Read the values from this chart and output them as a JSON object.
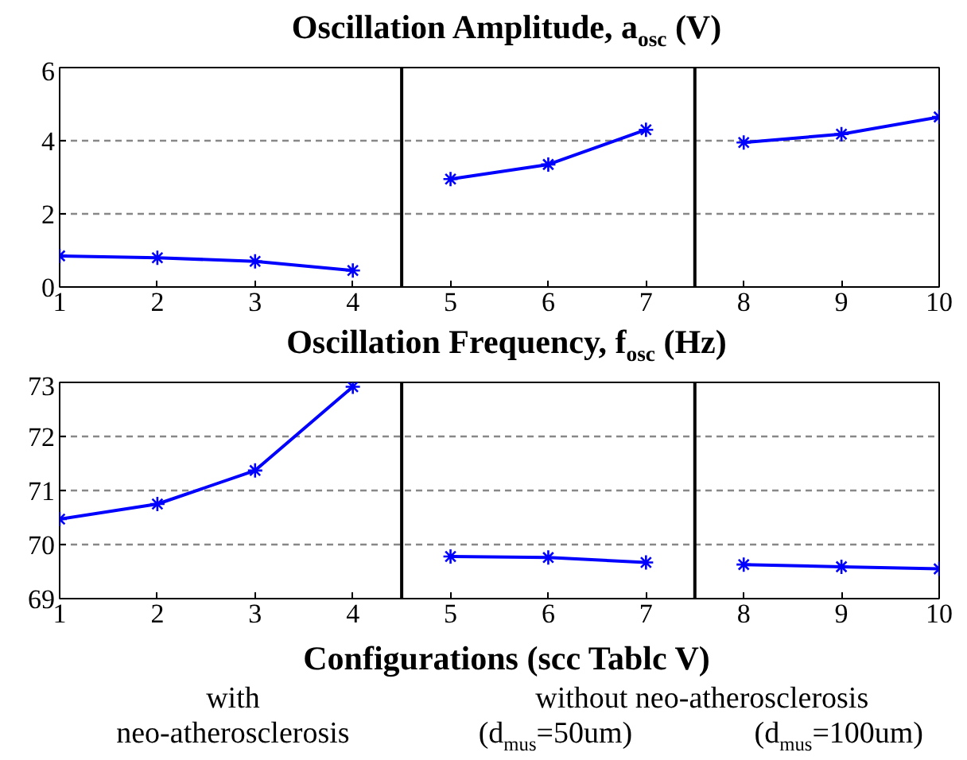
{
  "chart_data": [
    {
      "type": "line",
      "title": "Oscillation Amplitude, a$_{osc}$ (V)",
      "xlim": [
        1,
        10
      ],
      "xticks": [
        1,
        2,
        3,
        4,
        5,
        6,
        7,
        8,
        9,
        10
      ],
      "ylim": [
        0,
        6
      ],
      "yticks": [
        0,
        2,
        4,
        6
      ],
      "grid": "y",
      "marker": "cross",
      "line_style": "solid",
      "series": [
        {
          "color": "#0000ff",
          "x": [
            1,
            2,
            3,
            4
          ],
          "values": [
            0.85,
            0.8,
            0.7,
            0.45
          ]
        },
        {
          "color": "#0000ff",
          "x": [
            5,
            6,
            7
          ],
          "values": [
            2.95,
            3.35,
            4.3
          ]
        },
        {
          "color": "#0000ff",
          "x": [
            8,
            9,
            10
          ],
          "values": [
            3.95,
            4.18,
            4.65
          ]
        }
      ],
      "ref_lines": [
        {
          "axis": "x",
          "value": 4.5,
          "color": "#000000"
        },
        {
          "axis": "x",
          "value": 7.5,
          "color": "#000000"
        }
      ]
    },
    {
      "type": "line",
      "title": "Oscillation Frequency, f$_{osc}$ (Hz)",
      "xlabel": "Configurations (scc Tablc V)",
      "xlim": [
        1,
        10
      ],
      "xticks": [
        1,
        2,
        3,
        4,
        5,
        6,
        7,
        8,
        9,
        10
      ],
      "ylim": [
        69,
        73
      ],
      "yticks": [
        69,
        70,
        71,
        72,
        73
      ],
      "grid": "y",
      "marker": "cross",
      "line_style": "solid",
      "series": [
        {
          "color": "#0000ff",
          "x": [
            1,
            2,
            3,
            4
          ],
          "values": [
            70.47,
            70.75,
            71.37,
            72.92
          ]
        },
        {
          "color": "#0000ff",
          "x": [
            5,
            6,
            7
          ],
          "values": [
            69.78,
            69.76,
            69.67
          ]
        },
        {
          "color": "#0000ff",
          "x": [
            8,
            9,
            10
          ],
          "values": [
            69.63,
            69.59,
            69.55
          ]
        }
      ],
      "ref_lines": [
        {
          "axis": "x",
          "value": 4.5,
          "color": "#000000"
        },
        {
          "axis": "x",
          "value": 7.5,
          "color": "#000000"
        }
      ],
      "annotations": [
        "with\nneo-atherosclerosis",
        "without neo-atherosclerosis",
        "(d$_{mus}$=50um)",
        "(d$_{mus}$=100um)"
      ]
    }
  ]
}
